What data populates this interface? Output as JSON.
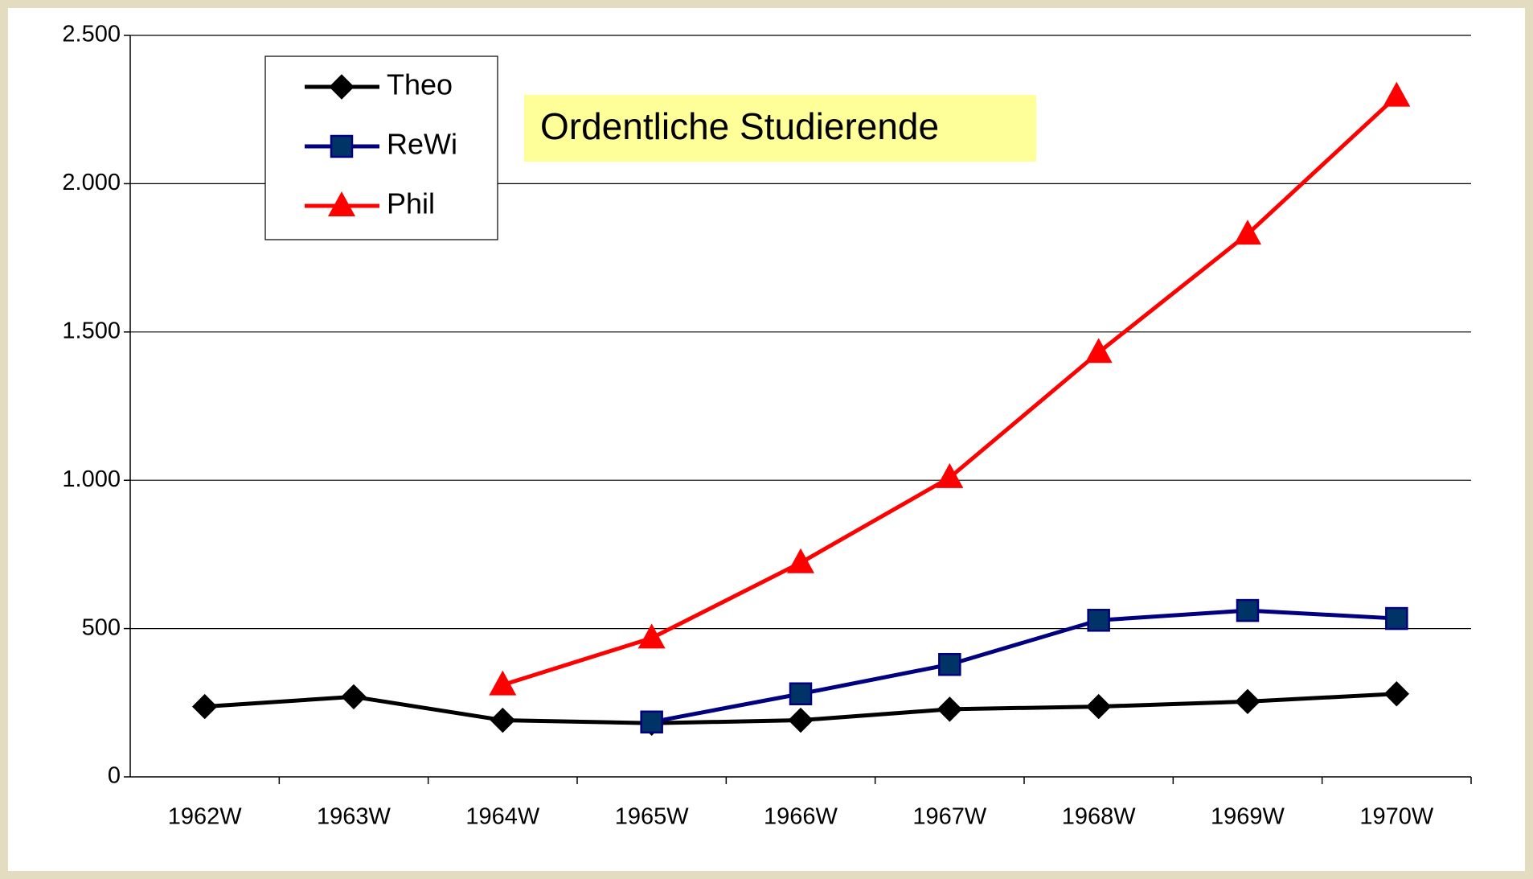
{
  "chart_data": {
    "type": "line",
    "title": "Ordentliche Studierende",
    "categories": [
      "1962W",
      "1963W",
      "1964W",
      "1965W",
      "1966W",
      "1967W",
      "1968W",
      "1969W",
      "1970W"
    ],
    "series": [
      {
        "name": "Theo",
        "color": "#000000",
        "marker": "diamond",
        "values": [
          237,
          270,
          191,
          181,
          191,
          228,
          237,
          254,
          280
        ]
      },
      {
        "name": "ReWi",
        "color": "#000080",
        "marker": "square",
        "values": [
          null,
          null,
          null,
          185,
          280,
          379,
          528,
          561,
          534
        ]
      },
      {
        "name": "Phil",
        "color": "#ff0000",
        "marker": "triangle",
        "values": [
          null,
          null,
          310,
          468,
          722,
          1009,
          1431,
          1830,
          2295
        ]
      }
    ],
    "ylim": [
      0,
      2500
    ],
    "yticks": [
      0,
      500,
      {
        "value": 1000,
        "label": "1.000"
      },
      {
        "value": 1500,
        "label": "1.500"
      },
      {
        "value": 2000,
        "label": "2.000"
      },
      {
        "value": 2500,
        "label": "2.500"
      }
    ],
    "grid": true
  }
}
